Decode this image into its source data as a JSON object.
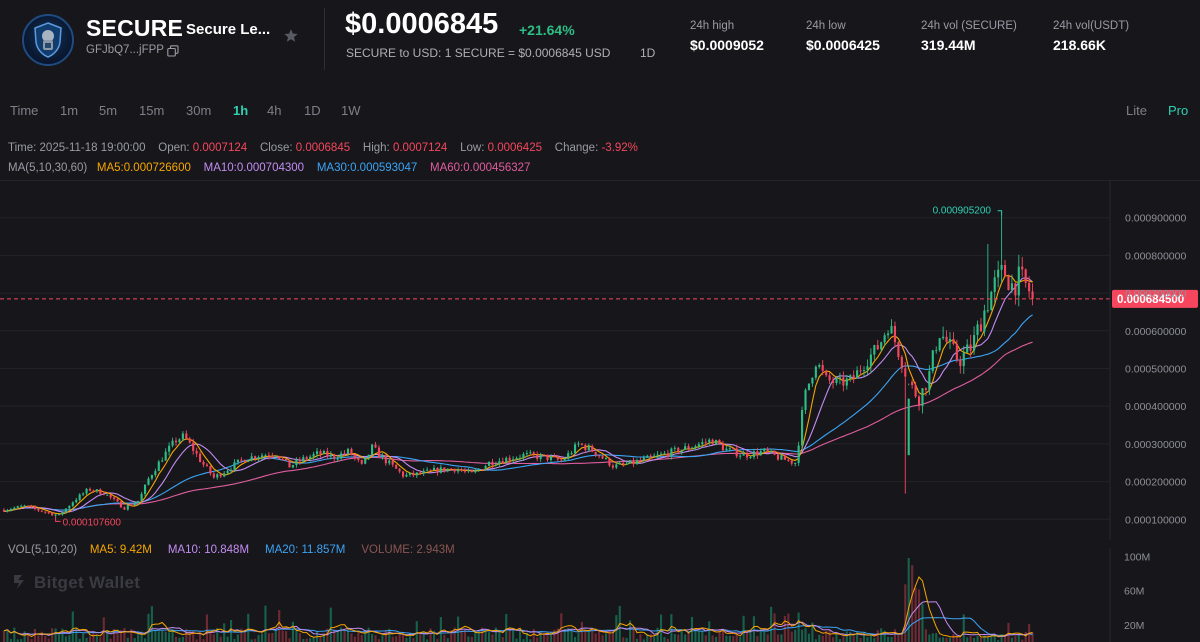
{
  "header": {
    "symbol": "SECURE",
    "name": "Secure Le...",
    "address": "GFJbQ7...jFPP",
    "price": "$0.0006845",
    "change": "+21.64%",
    "conversion": "SECURE to USD: 1 SECURE = $0.0006845 USD",
    "conversion_period": "1D",
    "stats": [
      {
        "label": "24h high",
        "value": "$0.0009052"
      },
      {
        "label": "24h low",
        "value": "$0.0006425"
      },
      {
        "label": "24h vol (SECURE)",
        "value": "319.44M"
      },
      {
        "label": "24h vol(USDT)",
        "value": "218.66K"
      }
    ],
    "icons": {
      "copy": "copy-icon",
      "favorite": "star-icon",
      "logo": "secure-shield-logo"
    }
  },
  "toolbar": {
    "timeframes": [
      "Time",
      "1m",
      "5m",
      "15m",
      "30m",
      "1h",
      "4h",
      "1D",
      "1W"
    ],
    "active_timeframe": "1h",
    "modes": [
      "Lite",
      "Pro"
    ],
    "active_mode": "Pro"
  },
  "candle_info": {
    "time_label": "Time:",
    "time": "2025-11-18 19:00:00",
    "open_label": "Open:",
    "open": "0.0007124",
    "close_label": "Close:",
    "close": "0.0006845",
    "high_label": "High:",
    "high": "0.0007124",
    "low_label": "Low:",
    "low": "0.0006425",
    "change_label": "Change:",
    "change": "-3.92%"
  },
  "ma_info": {
    "title": "MA(5,10,30,60)",
    "ma5_label": "MA5:",
    "ma5": "0.000726600",
    "ma10_label": "MA10:",
    "ma10": "0.000704300",
    "ma30_label": "MA30:",
    "ma30": "0.000593047",
    "ma60_label": "MA60:",
    "ma60": "0.000456327"
  },
  "vol_info": {
    "title": "VOL(5,10,20)",
    "ma5_label": "MA5:",
    "ma5": "9.42M",
    "ma10_label": "MA10:",
    "ma10": "10.848M",
    "ma20_label": "MA20:",
    "ma20": "11.857M",
    "volume_label": "VOLUME:",
    "volume": "2.943M"
  },
  "watermark": "Bitget Wallet",
  "chart_data": {
    "type": "candlestick",
    "interval": "1h",
    "y_axis_labels": [
      "0.000900000",
      "0.000800000",
      "0.000700000",
      "0.000600000",
      "0.000500000",
      "0.000400000",
      "0.000300000",
      "0.000200000",
      "0.000100000"
    ],
    "ylim": [
      4.5e-05,
      0.001
    ],
    "current_price_label": "0.000684500",
    "current_price": 0.0006845,
    "max_marker": {
      "label": "0.000905200",
      "value": 0.0009052
    },
    "min_marker": {
      "label": "0.000107600",
      "value": 0.0001076
    },
    "candle_count": 300,
    "price_path": [
      [
        0,
        0.000125
      ],
      [
        20,
        0.000135
      ],
      [
        40,
        0.00012
      ],
      [
        55,
        0.00011
      ],
      [
        70,
        0.00015
      ],
      [
        85,
        0.00018
      ],
      [
        100,
        0.00017
      ],
      [
        120,
        0.00013
      ],
      [
        135,
        0.00015
      ],
      [
        145,
        0.00021
      ],
      [
        160,
        0.00027
      ],
      [
        172,
        0.00031
      ],
      [
        180,
        0.00032
      ],
      [
        188,
        0.00029
      ],
      [
        198,
        0.00025
      ],
      [
        210,
        0.00021
      ],
      [
        222,
        0.00023
      ],
      [
        240,
        0.00026
      ],
      [
        255,
        0.00027
      ],
      [
        272,
        0.000275
      ],
      [
        285,
        0.00024
      ],
      [
        300,
        0.00026
      ],
      [
        315,
        0.000275
      ],
      [
        330,
        0.000265
      ],
      [
        345,
        0.00028
      ],
      [
        358,
        0.00024
      ],
      [
        368,
        0.00029
      ],
      [
        382,
        0.000255
      ],
      [
        400,
        0.000215
      ],
      [
        415,
        0.00022
      ],
      [
        432,
        0.00023
      ],
      [
        450,
        0.000235
      ],
      [
        468,
        0.00022
      ],
      [
        485,
        0.00025
      ],
      [
        502,
        0.00026
      ],
      [
        520,
        0.00027
      ],
      [
        540,
        0.000265
      ],
      [
        558,
        0.000255
      ],
      [
        575,
        0.0003
      ],
      [
        590,
        0.00028
      ],
      [
        610,
        0.00024
      ],
      [
        630,
        0.00025
      ],
      [
        650,
        0.000265
      ],
      [
        670,
        0.00028
      ],
      [
        690,
        0.000295
      ],
      [
        708,
        0.00031
      ],
      [
        722,
        0.000285
      ],
      [
        740,
        0.00027
      ],
      [
        760,
        0.00028
      ],
      [
        778,
        0.00026
      ],
      [
        792,
        0.00025
      ],
      [
        800,
        0.00042
      ],
      [
        812,
        0.00052
      ],
      [
        822,
        0.00047
      ],
      [
        835,
        0.00046
      ],
      [
        848,
        0.00047
      ],
      [
        862,
        0.00052
      ],
      [
        875,
        0.00056
      ],
      [
        885,
        0.00062
      ],
      [
        895,
        0.00054
      ],
      [
        905,
        0.00046
      ],
      [
        915,
        0.00042
      ],
      [
        925,
        0.00048
      ],
      [
        935,
        0.0006
      ],
      [
        945,
        0.00056
      ],
      [
        955,
        0.00052
      ],
      [
        968,
        0.00056
      ],
      [
        980,
        0.00065
      ],
      [
        990,
        0.00072
      ],
      [
        1000,
        0.00076
      ],
      [
        1008,
        0.00072
      ],
      [
        1016,
        0.00074
      ],
      [
        1024,
        0.00071
      ],
      [
        1032,
        0.000684
      ]
    ],
    "volume_axis_labels": [
      "100M",
      "60M",
      "20M"
    ],
    "volume_ylim": [
      0,
      105
    ],
    "volume_unit": "M",
    "series_colors": {
      "up": "#2ebd85",
      "down": "#f6465d",
      "ma5": "#f7a600",
      "ma10": "#c38cf2",
      "ma30": "#3ba4f5",
      "ma60": "#e05d9e"
    }
  }
}
